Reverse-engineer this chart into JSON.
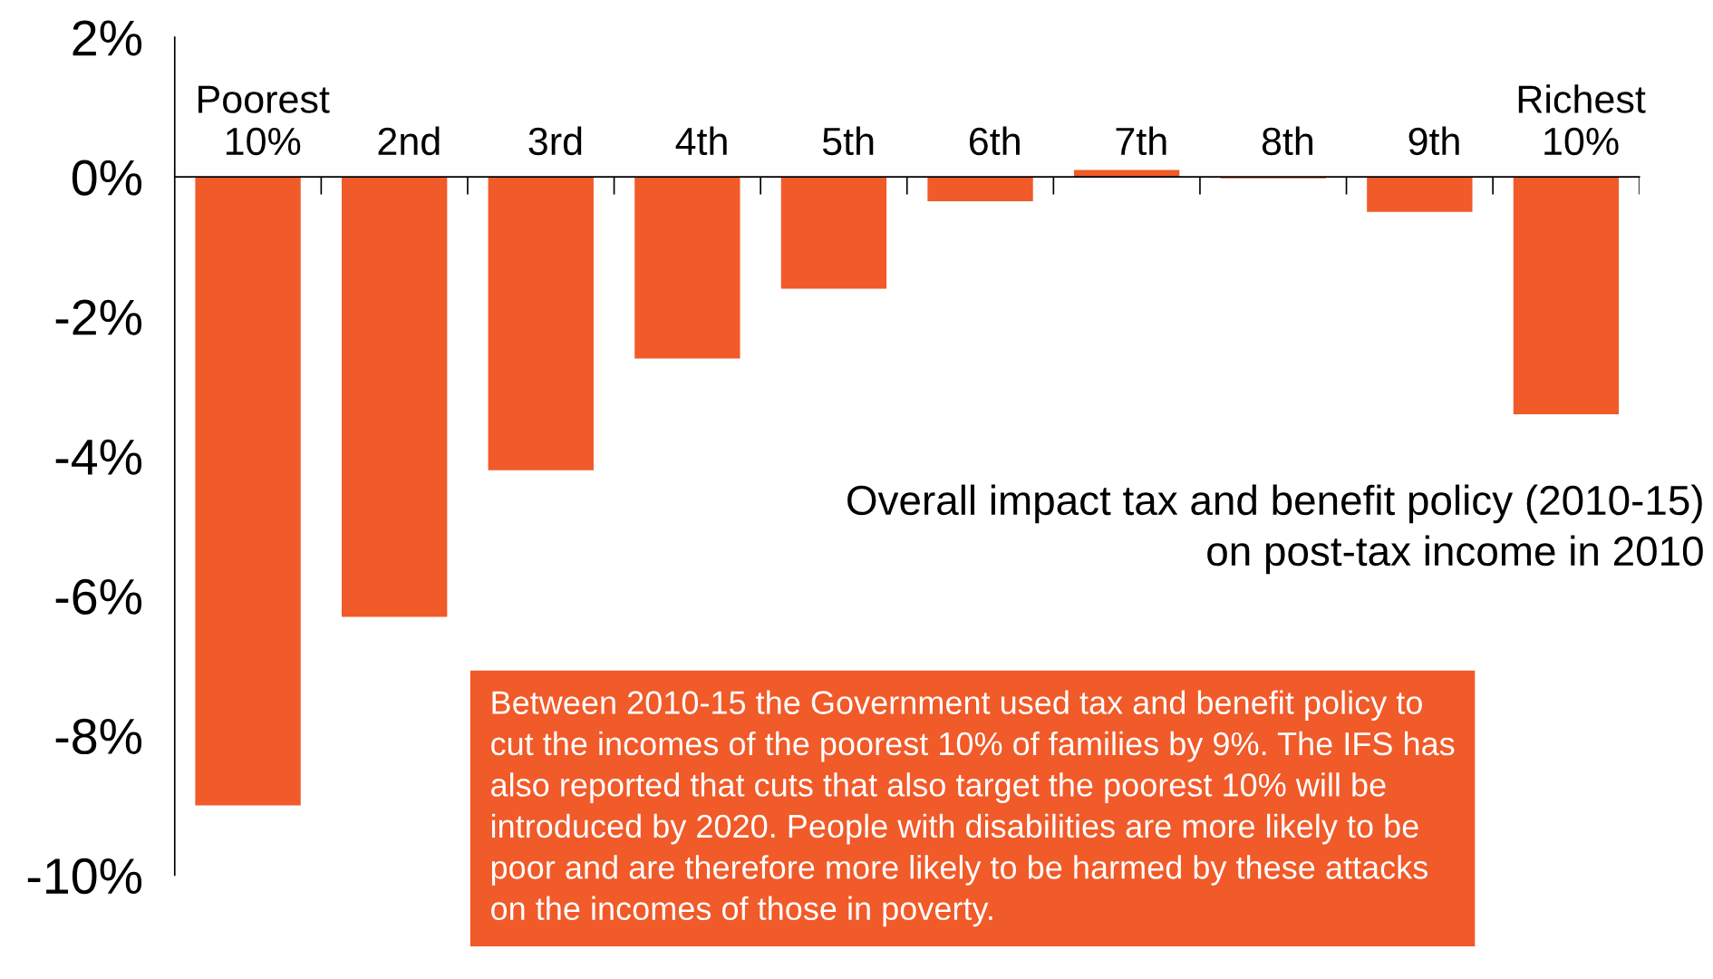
{
  "chart_data": {
    "type": "bar",
    "categories": [
      "Poorest\n10%",
      "2nd",
      "3rd",
      "4th",
      "5th",
      "6th",
      "7th",
      "8th",
      "9th",
      "Richest\n10%"
    ],
    "values": [
      -9.0,
      -6.3,
      -4.2,
      -2.6,
      -1.6,
      -0.35,
      0.1,
      -0.02,
      -0.5,
      -3.4
    ],
    "color": "#f15a29",
    "ylim": [
      -10,
      2
    ],
    "yticks": [
      {
        "value": 2,
        "label": "2%"
      },
      {
        "value": 0,
        "label": "0%"
      },
      {
        "value": -2,
        "label": "-2%"
      },
      {
        "value": -4,
        "label": "-4%"
      },
      {
        "value": -6,
        "label": "-6%"
      },
      {
        "value": -8,
        "label": "-8%"
      },
      {
        "value": -10,
        "label": "-10%"
      }
    ],
    "grid": false,
    "annotations": [
      "Overall impact tax and benefit policy (2010-15)\non post-tax income in 2010",
      "Between 2010-15 the Government used tax and benefit policy to\ncut the incomes of the poorest 10% of families by 9%. The IFS has\nalso reported that cuts that also target the poorest 10% will be\nintroduced by 2020. People with disabilities are more likely to be\npoor and are therefore more likely to be harmed by these attacks\non the incomes of those in poverty."
    ]
  }
}
